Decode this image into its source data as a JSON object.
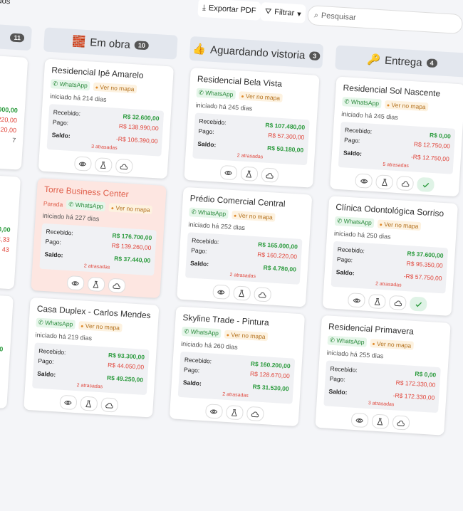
{
  "toolbar": {
    "left_fragment": "idos",
    "export": "Exportar PDF",
    "filter": "Filtrar",
    "search_placeholder": "Pesquisar"
  },
  "labels": {
    "whatsapp": "WhatsApp",
    "map": "Ver no mapa",
    "received": "Recebido:",
    "paid": "Pago:",
    "balance": "Saldo:"
  },
  "partial_column": {
    "count": "11",
    "cards": [
      {
        "fragments": [
          "000,00",
          "220,00",
          "220,00"
        ],
        "badge": "7"
      },
      {
        "fragments": [
          "0,00",
          "04,33",
          "43"
        ]
      },
      {
        "fragments": [
          "0"
        ]
      }
    ]
  },
  "columns": [
    {
      "icon": "🧱",
      "title": "Em obra",
      "count": "10",
      "cards": [
        {
          "name": "Residencial Ipê Amarelo",
          "started": "iniciado há 214 dias",
          "received": "R$ 32.600,00",
          "paid": "R$ 138.990,00",
          "balance": "-R$ 106.390,00",
          "overdue": "3 atrasadas"
        },
        {
          "name": "Torre Business Center",
          "status": "Parada",
          "started": "iniciado há 227 dias",
          "received": "R$ 176.700,00",
          "paid": "R$ 139.260,00",
          "balance": "R$ 37.440,00",
          "overdue": "2 atrasadas"
        },
        {
          "name": "Casa Duplex - Carlos Mendes",
          "started": "iniciado há 219 dias",
          "received": "R$ 93.300,00",
          "paid": "R$ 44.050,00",
          "balance": "R$ 49.250,00",
          "overdue": "2 atrasadas"
        }
      ]
    },
    {
      "icon": "👍",
      "title": "Aguardando vistoria",
      "count": "3",
      "cards": [
        {
          "name": "Residencial Bela Vista",
          "started": "iniciado há 245 dias",
          "received": "R$ 107.480,00",
          "paid": "R$ 57.300,00",
          "balance": "R$ 50.180,00",
          "overdue": "2 atrasadas"
        },
        {
          "name": "Prédio Comercial Central",
          "started": "iniciado há 252 dias",
          "received": "R$ 165.000,00",
          "paid": "R$ 160.220,00",
          "balance": "R$ 4.780,00",
          "overdue": "2 atrasadas"
        },
        {
          "name": "Skyline Trade - Pintura",
          "started": "iniciado há 260 dias",
          "received": "R$ 160.200,00",
          "paid": "R$ 128.670,00",
          "balance": "R$ 31.530,00",
          "overdue": "2 atrasadas"
        }
      ]
    },
    {
      "icon": "🔑",
      "title": "Entrega",
      "count": "4",
      "cards": [
        {
          "name": "Residencial Sol Nascente",
          "started": "iniciado há 245 dias",
          "received": "R$ 0,00",
          "paid": "R$ 12.750,00",
          "balance": "-R$ 12.750,00",
          "overdue": "5 atrasadas",
          "done": true
        },
        {
          "name": "Clínica Odontológica Sorriso",
          "started": "iniciado há 250 dias",
          "received": "R$ 37.600,00",
          "paid": "R$ 95.350,00",
          "balance": "-R$ 57.750,00",
          "overdue": "2 atrasadas",
          "done": true
        },
        {
          "name": "Residencial Primavera",
          "started": "iniciado há 255 dias",
          "received": "R$ 0,00",
          "paid": "R$ 172.330,00",
          "balance": "-R$ 172.330,00",
          "overdue": "3 atrasadas"
        }
      ]
    }
  ]
}
